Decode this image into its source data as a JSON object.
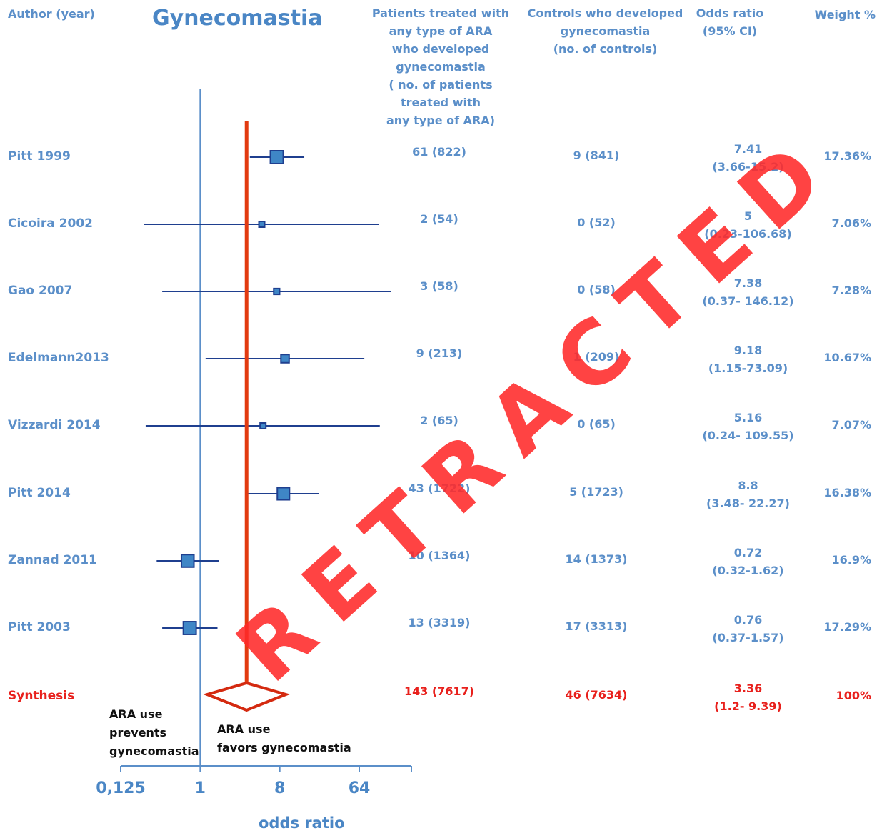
{
  "title": "Gynecomastia",
  "headers": {
    "author": "Author (year)",
    "treated": "Patients treated with\nany type of ARA\nwho developed\ngynecomastia\n( no. of patients\ntreated with\nany type of ARA)",
    "controls": "Controls who developed\ngynecomastia\n(no. of controls)",
    "odds_ratio": "Odds ratio\n(95% CI)",
    "weight": "Weight %"
  },
  "studies": [
    {
      "name": "Pitt 1999",
      "treated": "61 (822)",
      "controls": "9 (841)",
      "or": "7.41",
      "ci": "(3.66-15.2)",
      "weight": "17.36%"
    },
    {
      "name": "Cicoira 2002",
      "treated": "2 (54)",
      "controls": "0 (52)",
      "or": "5",
      "ci": "(0.23-106.68)",
      "weight": "7.06%"
    },
    {
      "name": "Gao 2007",
      "treated": "3 (58)",
      "controls": "0 (58)",
      "or": "7.38",
      "ci": "(0.37- 146.12)",
      "weight": "7.28%"
    },
    {
      "name": "Edelmann2013",
      "treated": "9 (213)",
      "controls": "1 (209)",
      "or": "9.18",
      "ci": "(1.15-73.09)",
      "weight": "10.67%"
    },
    {
      "name": "Vizzardi 2014",
      "treated": "2 (65)",
      "controls": "0 (65)",
      "or": "5.16",
      "ci": "(0.24- 109.55)",
      "weight": "7.07%"
    },
    {
      "name": "Pitt 2014",
      "treated": "43 (1722)",
      "controls": "5 (1723)",
      "or": "8.8",
      "ci": "(3.48- 22.27)",
      "weight": "16.38%"
    },
    {
      "name": "Zannad 2011",
      "treated": "10 (1364)",
      "controls": "14 (1373)",
      "or": "0.72",
      "ci": "(0.32-1.62)",
      "weight": "16.9%"
    },
    {
      "name": "Pitt 2003",
      "treated": "13 (3319)",
      "controls": "17 (3313)",
      "or": "0.76",
      "ci": "(0.37-1.57)",
      "weight": "17.29%"
    }
  ],
  "synthesis": {
    "name": "Synthesis",
    "treated": "143 (7617)",
    "controls": "46 (7634)",
    "or": "3.36",
    "ci": "(1.2- 9.39)",
    "weight": "100%"
  },
  "annotations": {
    "prevents": "ARA use\nprevents\ngynecomastia",
    "favors": "ARA use\nfavors gynecomastia"
  },
  "axis": {
    "ticks": [
      "0,125",
      "1",
      "8",
      "64"
    ],
    "label": "odds ratio"
  },
  "watermark": "RETRACTED",
  "colors": {
    "text": "#5b8fc9",
    "ci_line": "#1f3f8f",
    "marker": "#3f86c6",
    "synthesis": "#e8201c",
    "watermark": "#ff2a2a"
  },
  "chart_data": {
    "type": "forest",
    "scale": "log2",
    "xlabel": "odds ratio",
    "xticks": [
      0.125,
      1,
      8,
      64
    ],
    "reference_line": 1,
    "pooled_estimate": {
      "or": 3.36,
      "lo": 1.2,
      "hi": 9.39
    },
    "series": [
      {
        "study": "Pitt 1999",
        "or": 7.41,
        "lo": 3.66,
        "hi": 15.2,
        "weight": 17.36
      },
      {
        "study": "Cicoira 2002",
        "or": 5,
        "lo": 0.23,
        "hi": 106.68,
        "weight": 7.06
      },
      {
        "study": "Gao 2007",
        "or": 7.38,
        "lo": 0.37,
        "hi": 146.12,
        "weight": 7.28
      },
      {
        "study": "Edelmann2013",
        "or": 9.18,
        "lo": 1.15,
        "hi": 73.09,
        "weight": 10.67
      },
      {
        "study": "Vizzardi 2014",
        "or": 5.16,
        "lo": 0.24,
        "hi": 109.55,
        "weight": 7.07
      },
      {
        "study": "Pitt 2014",
        "or": 8.8,
        "lo": 3.48,
        "hi": 22.27,
        "weight": 16.38
      },
      {
        "study": "Zannad 2011",
        "or": 0.72,
        "lo": 0.32,
        "hi": 1.62,
        "weight": 16.9
      },
      {
        "study": "Pitt 2003",
        "or": 0.76,
        "lo": 0.37,
        "hi": 1.57,
        "weight": 17.29
      }
    ]
  }
}
